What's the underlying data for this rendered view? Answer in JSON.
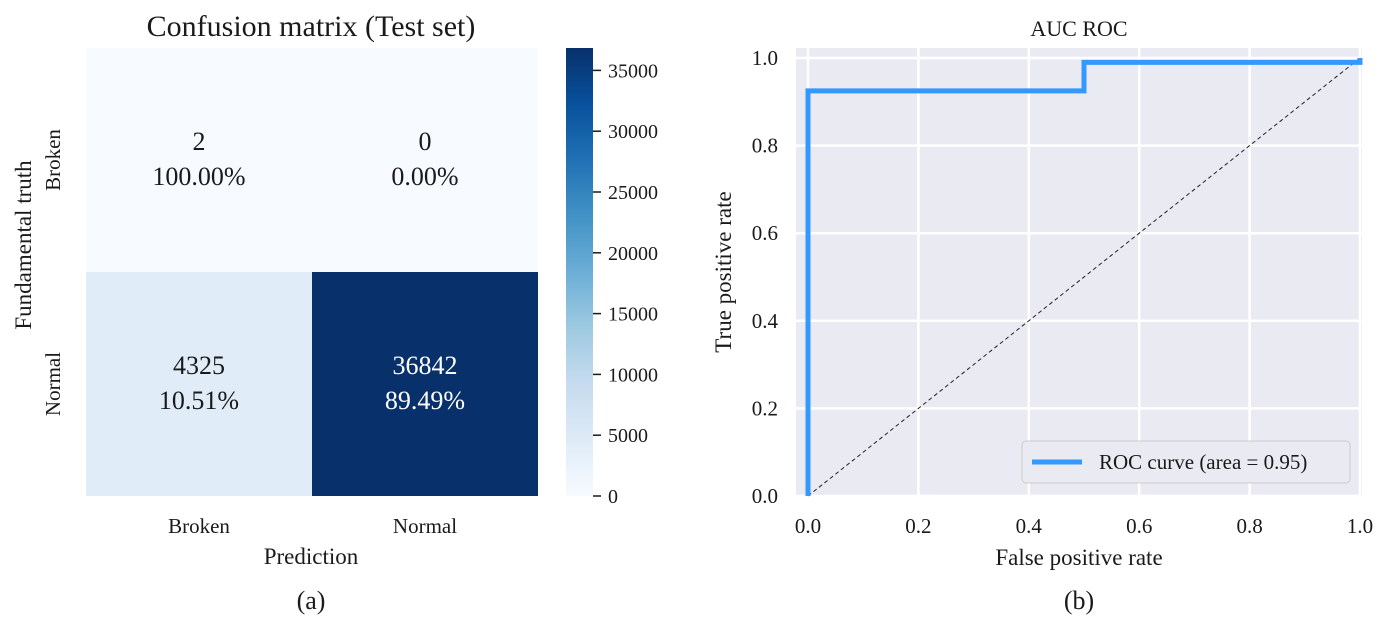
{
  "chart_data": [
    {
      "type": "heatmap",
      "title": "Confusion matrix (Test set)",
      "xlabel": "Prediction",
      "ylabel": "Fundamental truth",
      "caption": "(a)",
      "x_categories": [
        "Broken",
        "Normal"
      ],
      "y_categories": [
        "Broken",
        "Normal"
      ],
      "cells": [
        {
          "row": 0,
          "col": 0,
          "value": 2,
          "count_label": "2",
          "pct_label": "100.00%"
        },
        {
          "row": 0,
          "col": 1,
          "value": 0,
          "count_label": "0",
          "pct_label": "0.00%"
        },
        {
          "row": 1,
          "col": 0,
          "value": 4325,
          "count_label": "4325",
          "pct_label": "10.51%"
        },
        {
          "row": 1,
          "col": 1,
          "value": 36842,
          "count_label": "36842",
          "pct_label": "89.49%"
        }
      ],
      "colorbar": {
        "colormap": "Blues",
        "min": 0,
        "max": 36842,
        "ticks": [
          0,
          5000,
          10000,
          15000,
          20000,
          25000,
          30000,
          35000
        ]
      }
    },
    {
      "type": "line",
      "title": "AUC ROC",
      "xlabel": "False positive rate",
      "ylabel": "True positive rate",
      "caption": "(b)",
      "xlim": [
        0.0,
        1.0
      ],
      "ylim": [
        0.0,
        1.0
      ],
      "xticks": [
        0.0,
        0.2,
        0.4,
        0.6,
        0.8,
        1.0
      ],
      "yticks": [
        0.0,
        0.2,
        0.4,
        0.6,
        0.8,
        1.0
      ],
      "xtick_labels": [
        "0.0",
        "0.2",
        "0.4",
        "0.6",
        "0.8",
        "1.0"
      ],
      "ytick_labels": [
        "0.0",
        "0.2",
        "0.4",
        "0.6",
        "0.8",
        "1.0"
      ],
      "grid": true,
      "legend_position": "bottom-right",
      "series": [
        {
          "name": "ROC curve (area = 0.95)",
          "color": "#3399ff",
          "points": [
            [
              0.0,
              0.0
            ],
            [
              0.0,
              0.925
            ],
            [
              0.5,
              0.925
            ],
            [
              0.5,
              0.99
            ],
            [
              1.0,
              0.99
            ],
            [
              1.0,
              1.0
            ]
          ]
        }
      ],
      "reference_line": {
        "points": [
          [
            0.0,
            0.0
          ],
          [
            1.0,
            1.0
          ]
        ],
        "style": "dashed",
        "color": "#222222"
      }
    }
  ]
}
